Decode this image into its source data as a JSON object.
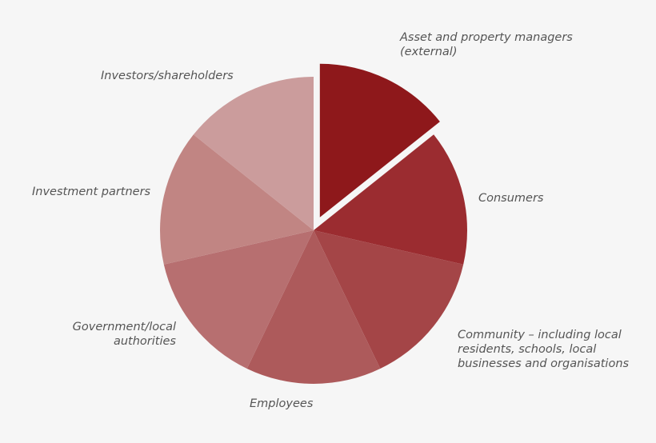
{
  "chart_data": {
    "type": "pie",
    "title": "",
    "start_angle_deg": 0,
    "direction": "clockwise",
    "exploded": [
      "Asset and property managers (external)"
    ],
    "slices": [
      {
        "label": "Asset and property managers\n(external)",
        "value": 1,
        "color": "#8e181b"
      },
      {
        "label": "Consumers",
        "value": 1,
        "color": "#9b2c30"
      },
      {
        "label": "Community – including local\nresidents, schools, local\nbusinesses and organisations",
        "value": 1,
        "color": "#a44547"
      },
      {
        "label": "Employees",
        "value": 1,
        "color": "#ad5a5b"
      },
      {
        "label": "Government/local\nauthorities",
        "value": 1,
        "color": "#b76f70"
      },
      {
        "label": "Investment partners",
        "value": 1,
        "color": "#c18583"
      },
      {
        "label": "Investors/shareholders",
        "value": 1,
        "color": "#cb9c9c"
      }
    ]
  }
}
